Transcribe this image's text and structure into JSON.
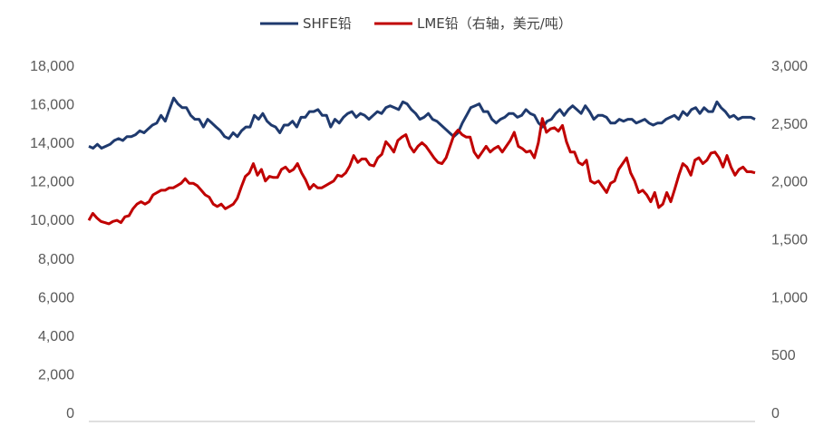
{
  "chart_data": {
    "type": "line",
    "title": "",
    "xlabel": "",
    "ylabel": "",
    "y_left": {
      "ticks": [
        "0",
        "2,000",
        "4,000",
        "6,000",
        "8,000",
        "10,000",
        "12,000",
        "14,000",
        "16,000",
        "18,000"
      ],
      "lim": [
        0,
        18000
      ]
    },
    "y_right": {
      "ticks": [
        "0",
        "500",
        "1,000",
        "1,500",
        "2,000",
        "2,500",
        "3,000"
      ],
      "lim": [
        0,
        3000
      ]
    },
    "legend_position": "top-center",
    "grid": false,
    "series": [
      {
        "name": "SHFE铅",
        "axis": "left",
        "color": "#1f3a6e",
        "values": [
          13800,
          13700,
          13900,
          13700,
          13800,
          13900,
          14100,
          14200,
          14100,
          14300,
          14300,
          14400,
          14600,
          14500,
          14700,
          14900,
          15000,
          15400,
          15100,
          15700,
          16300,
          16000,
          15800,
          15800,
          15400,
          15200,
          15200,
          14800,
          15200,
          15000,
          14800,
          14600,
          14300,
          14200,
          14500,
          14300,
          14600,
          14800,
          14800,
          15400,
          15200,
          15500,
          15100,
          14900,
          14800,
          14500,
          14900,
          14900,
          15100,
          14800,
          15300,
          15300,
          15600,
          15600,
          15700,
          15400,
          15400,
          14800,
          15200,
          15000,
          15300,
          15500,
          15600,
          15300,
          15500,
          15400,
          15200,
          15400,
          15600,
          15500,
          15800,
          15900,
          15800,
          15700,
          16100,
          16000,
          15700,
          15500,
          15200,
          15300,
          15500,
          15200,
          15100,
          14900,
          14700,
          14500,
          14300,
          14500,
          15000,
          15400,
          15800,
          15900,
          16000,
          15600,
          15600,
          15200,
          15000,
          15200,
          15300,
          15500,
          15500,
          15300,
          15400,
          15700,
          15500,
          15400,
          15000,
          14800,
          15100,
          15200,
          15500,
          15700,
          15400,
          15700,
          15900,
          15700,
          15500,
          15900,
          15600,
          15200,
          15400,
          15400,
          15300,
          15000,
          15000,
          15200,
          15100,
          15200,
          15200,
          15000,
          15100,
          15200,
          15000,
          14900,
          15000,
          15000,
          15200,
          15300,
          15400,
          15200,
          15600,
          15400,
          15700,
          15800,
          15500,
          15800,
          15600,
          15600,
          16100,
          15800,
          15600,
          15300,
          15400,
          15200,
          15300,
          15300,
          15300,
          15200
        ]
      },
      {
        "name": "LME铅（右轴，美元/吨）",
        "axis": "right",
        "color": "#c00000",
        "values": [
          1660,
          1720,
          1680,
          1650,
          1640,
          1630,
          1650,
          1660,
          1640,
          1690,
          1700,
          1760,
          1800,
          1820,
          1800,
          1820,
          1880,
          1900,
          1920,
          1920,
          1940,
          1940,
          1960,
          1980,
          2020,
          1980,
          1980,
          1960,
          1920,
          1880,
          1860,
          1800,
          1780,
          1800,
          1760,
          1780,
          1800,
          1850,
          1950,
          2040,
          2070,
          2150,
          2050,
          2100,
          2000,
          2040,
          2030,
          2030,
          2100,
          2120,
          2080,
          2100,
          2150,
          2070,
          2010,
          1930,
          1970,
          1940,
          1940,
          1960,
          1980,
          2000,
          2050,
          2040,
          2070,
          2130,
          2220,
          2160,
          2190,
          2190,
          2140,
          2130,
          2200,
          2230,
          2340,
          2300,
          2250,
          2350,
          2380,
          2400,
          2300,
          2250,
          2300,
          2330,
          2300,
          2250,
          2200,
          2160,
          2150,
          2200,
          2300,
          2400,
          2440,
          2400,
          2380,
          2380,
          2250,
          2200,
          2250,
          2300,
          2250,
          2280,
          2300,
          2250,
          2300,
          2350,
          2420,
          2300,
          2280,
          2250,
          2260,
          2200,
          2330,
          2540,
          2420,
          2450,
          2460,
          2430,
          2480,
          2340,
          2250,
          2250,
          2160,
          2140,
          2180,
          2000,
          1980,
          2000,
          1950,
          1900,
          1980,
          2000,
          2100,
          2150,
          2200,
          2070,
          2000,
          1900,
          1920,
          1880,
          1820,
          1900,
          1770,
          1800,
          1900,
          1820,
          1930,
          2050,
          2150,
          2120,
          2050,
          2180,
          2200,
          2150,
          2180,
          2240,
          2250,
          2200,
          2120,
          2220,
          2120,
          2050,
          2100,
          2120,
          2080,
          2080,
          2070
        ]
      }
    ],
    "x_axis_note": "x-axis date labels are cut off at the bottom edge and not legible"
  }
}
